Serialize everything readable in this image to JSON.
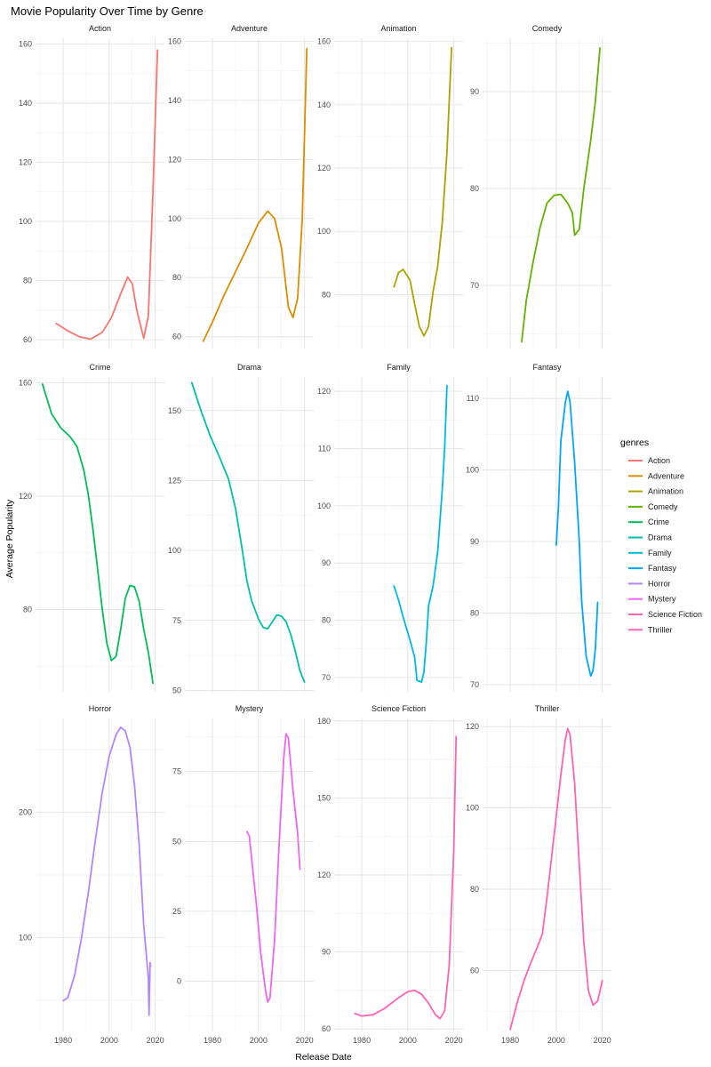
{
  "chart_data": {
    "type": "line",
    "title": "Movie Popularity Over Time by Genre",
    "xlabel": "Release Date",
    "ylabel": "Average Popularity",
    "legend_title": "genres",
    "legend_position": "right",
    "grid": true,
    "x_ticks": [
      1980,
      2000,
      2020
    ],
    "xlim": [
      1968,
      2024
    ],
    "facets": [
      {
        "name": "Action",
        "color": "#F8766D",
        "ylim": [
          57,
          162
        ],
        "y_ticks": [
          60,
          80,
          100,
          120,
          140,
          160
        ],
        "points": [
          [
            1977,
            65.5
          ],
          [
            1982,
            63
          ],
          [
            1987,
            61
          ],
          [
            1992,
            60.2
          ],
          [
            1997,
            62.5
          ],
          [
            2001,
            67.5
          ],
          [
            2005,
            75.5
          ],
          [
            2008,
            81.2
          ],
          [
            2010,
            79
          ],
          [
            2012,
            70
          ],
          [
            2015,
            60.5
          ],
          [
            2017,
            68
          ],
          [
            2019,
            110
          ],
          [
            2021,
            158
          ]
        ]
      },
      {
        "name": "Adventure",
        "color": "#DB8E00",
        "ylim": [
          56,
          161
        ],
        "y_ticks": [
          60,
          80,
          100,
          120,
          140,
          160
        ],
        "points": [
          [
            1976,
            58.5
          ],
          [
            1980,
            65
          ],
          [
            1985,
            74
          ],
          [
            1990,
            82
          ],
          [
            1995,
            90
          ],
          [
            2000,
            98.5
          ],
          [
            2004,
            102.5
          ],
          [
            2007,
            100
          ],
          [
            2010,
            90
          ],
          [
            2013,
            70
          ],
          [
            2015,
            66.5
          ],
          [
            2017,
            73
          ],
          [
            2019,
            100
          ],
          [
            2021,
            157.5
          ]
        ]
      },
      {
        "name": "Animation",
        "color": "#AEA200",
        "ylim": [
          63,
          161
        ],
        "y_ticks": [
          80,
          100,
          120,
          140,
          160
        ],
        "points": [
          [
            1994,
            82.5
          ],
          [
            1996,
            87
          ],
          [
            1998,
            88
          ],
          [
            2001,
            84.5
          ],
          [
            2003,
            77
          ],
          [
            2005,
            70
          ],
          [
            2007,
            67
          ],
          [
            2009,
            70
          ],
          [
            2011,
            81
          ],
          [
            2013,
            89
          ],
          [
            2015,
            103
          ],
          [
            2017,
            125
          ],
          [
            2019,
            158
          ]
        ]
      },
      {
        "name": "Comedy",
        "color": "#64B200",
        "ylim": [
          63.5,
          95.5
        ],
        "y_ticks": [
          70,
          80,
          90
        ],
        "points": [
          [
            1985,
            64.2
          ],
          [
            1987,
            68.5
          ],
          [
            1990,
            72.5
          ],
          [
            1993,
            76
          ],
          [
            1996,
            78.5
          ],
          [
            1999,
            79.3
          ],
          [
            2002,
            79.4
          ],
          [
            2005,
            78.5
          ],
          [
            2007,
            77.5
          ],
          [
            2008,
            75.2
          ],
          [
            2010,
            75.8
          ],
          [
            2012,
            80
          ],
          [
            2015,
            85
          ],
          [
            2017,
            89
          ],
          [
            2019,
            94.5
          ]
        ]
      },
      {
        "name": "Crime",
        "color": "#00BD5C",
        "ylim": [
          51,
          162
        ],
        "y_ticks": [
          80,
          120,
          160
        ],
        "points": [
          [
            1971,
            159.5
          ],
          [
            1975,
            149
          ],
          [
            1979,
            144
          ],
          [
            1983,
            141
          ],
          [
            1986,
            137.5
          ],
          [
            1989,
            129
          ],
          [
            1991,
            120
          ],
          [
            1993,
            108
          ],
          [
            1995,
            94
          ],
          [
            1997,
            80
          ],
          [
            1999,
            68
          ],
          [
            2001,
            62
          ],
          [
            2003,
            63.5
          ],
          [
            2005,
            73
          ],
          [
            2007,
            84
          ],
          [
            2009,
            88.5
          ],
          [
            2011,
            88
          ],
          [
            2013,
            83
          ],
          [
            2015,
            73
          ],
          [
            2017,
            65
          ],
          [
            2019,
            54
          ]
        ]
      },
      {
        "name": "Drama",
        "color": "#00C1A7",
        "ylim": [
          49.5,
          162
        ],
        "y_ticks": [
          50,
          75,
          100,
          125,
          150
        ],
        "points": [
          [
            1971,
            160
          ],
          [
            1975,
            150
          ],
          [
            1979,
            141
          ],
          [
            1983,
            133.5
          ],
          [
            1987,
            125.5
          ],
          [
            1990,
            115
          ],
          [
            1993,
            100
          ],
          [
            1995,
            89
          ],
          [
            1997,
            82
          ],
          [
            2000,
            75.5
          ],
          [
            2002,
            72.5
          ],
          [
            2004,
            72
          ],
          [
            2006,
            74.5
          ],
          [
            2008,
            77
          ],
          [
            2010,
            76.5
          ],
          [
            2012,
            74.5
          ],
          [
            2014,
            70
          ],
          [
            2016,
            64
          ],
          [
            2018,
            57
          ],
          [
            2020,
            53
          ]
        ]
      },
      {
        "name": "Family",
        "color": "#00BADE",
        "ylim": [
          67.5,
          122.5
        ],
        "y_ticks": [
          70,
          80,
          90,
          100,
          110,
          120
        ],
        "points": [
          [
            1994,
            86
          ],
          [
            1996,
            83.5
          ],
          [
            1998,
            80.5
          ],
          [
            2001,
            76.5
          ],
          [
            2003,
            73.5
          ],
          [
            2004,
            69.5
          ],
          [
            2006,
            69.2
          ],
          [
            2007,
            71
          ],
          [
            2008,
            76
          ],
          [
            2009,
            82.5
          ],
          [
            2011,
            86
          ],
          [
            2013,
            92
          ],
          [
            2015,
            103
          ],
          [
            2016,
            110
          ],
          [
            2017,
            121
          ]
        ]
      },
      {
        "name": "Fantasy",
        "color": "#00A6FF",
        "ylim": [
          69,
          113
        ],
        "y_ticks": [
          70,
          80,
          90,
          100,
          110
        ],
        "points": [
          [
            2000,
            89.5
          ],
          [
            2001,
            95
          ],
          [
            2002,
            104
          ],
          [
            2004,
            109.5
          ],
          [
            2005,
            111
          ],
          [
            2006,
            109.5
          ],
          [
            2008,
            101
          ],
          [
            2010,
            90
          ],
          [
            2011,
            82
          ],
          [
            2013,
            74
          ],
          [
            2015,
            71.2
          ],
          [
            2016,
            72
          ],
          [
            2017,
            75
          ],
          [
            2018,
            81.5
          ]
        ]
      },
      {
        "name": "Horror",
        "color": "#B385FF",
        "ylim": [
          25,
          275
        ],
        "y_ticks": [
          100,
          200
        ],
        "points": [
          [
            1980,
            49.5
          ],
          [
            1982,
            52
          ],
          [
            1985,
            70
          ],
          [
            1988,
            100
          ],
          [
            1991,
            137
          ],
          [
            1994,
            178
          ],
          [
            1997,
            216
          ],
          [
            2000,
            245
          ],
          [
            2003,
            262
          ],
          [
            2005,
            268
          ],
          [
            2007,
            265
          ],
          [
            2009,
            252
          ],
          [
            2011,
            222
          ],
          [
            2013,
            175
          ],
          [
            2015,
            110
          ],
          [
            2017,
            68
          ],
          [
            2017.3,
            38
          ],
          [
            2017.6,
            65
          ],
          [
            2017.8,
            80
          ],
          [
            2018,
            77
          ]
        ]
      },
      {
        "name": "Mystery",
        "color": "#EF67EB",
        "ylim": [
          -18,
          94
        ],
        "y_ticks": [
          0,
          25,
          50,
          75
        ],
        "points": [
          [
            1995,
            53.5
          ],
          [
            1996,
            52
          ],
          [
            1997,
            44
          ],
          [
            1999,
            28
          ],
          [
            2001,
            10
          ],
          [
            2003,
            -3
          ],
          [
            2004,
            -7.5
          ],
          [
            2005,
            -6
          ],
          [
            2007,
            15
          ],
          [
            2009,
            50
          ],
          [
            2011,
            80
          ],
          [
            2012,
            88.5
          ],
          [
            2013,
            87
          ],
          [
            2015,
            68
          ],
          [
            2017,
            53
          ],
          [
            2018,
            40
          ]
        ]
      },
      {
        "name": "Science Fiction",
        "color": "#FF63B6",
        "ylim": [
          59,
          181
        ],
        "y_ticks": [
          60,
          90,
          120,
          150,
          180
        ],
        "points": [
          [
            1977,
            66
          ],
          [
            1980,
            65
          ],
          [
            1985,
            65.5
          ],
          [
            1990,
            68
          ],
          [
            1995,
            71.5
          ],
          [
            2000,
            74.5
          ],
          [
            2003,
            75
          ],
          [
            2006,
            73.5
          ],
          [
            2009,
            70
          ],
          [
            2012,
            65.5
          ],
          [
            2014,
            64
          ],
          [
            2016,
            67
          ],
          [
            2018,
            85
          ],
          [
            2020,
            130
          ],
          [
            2021,
            174
          ]
        ]
      },
      {
        "name": "Thriller",
        "color": "#FF63B6",
        "ylim": [
          45,
          122
        ],
        "y_ticks": [
          60,
          80,
          100,
          120
        ],
        "points": [
          [
            1980,
            45.5
          ],
          [
            1983,
            52
          ],
          [
            1986,
            57.5
          ],
          [
            1989,
            62
          ],
          [
            1992,
            66
          ],
          [
            1994,
            69
          ],
          [
            1996,
            78
          ],
          [
            1998,
            88
          ],
          [
            2000,
            98
          ],
          [
            2002,
            108
          ],
          [
            2004,
            117
          ],
          [
            2005,
            119.5
          ],
          [
            2006,
            118
          ],
          [
            2008,
            106
          ],
          [
            2010,
            86
          ],
          [
            2012,
            67
          ],
          [
            2014,
            55
          ],
          [
            2016,
            51.5
          ],
          [
            2018,
            52.5
          ],
          [
            2020,
            57.5
          ]
        ]
      }
    ],
    "legend": [
      {
        "label": "Action",
        "color": "#F8766D"
      },
      {
        "label": "Adventure",
        "color": "#DB8E00"
      },
      {
        "label": "Animation",
        "color": "#AEA200"
      },
      {
        "label": "Comedy",
        "color": "#64B200"
      },
      {
        "label": "Crime",
        "color": "#00BD5C"
      },
      {
        "label": "Drama",
        "color": "#00C1A7"
      },
      {
        "label": "Family",
        "color": "#00BADE"
      },
      {
        "label": "Fantasy",
        "color": "#00A6FF"
      },
      {
        "label": "Horror",
        "color": "#B385FF"
      },
      {
        "label": "Mystery",
        "color": "#EF67EB"
      },
      {
        "label": "Science Fiction",
        "color": "#FF63B6"
      },
      {
        "label": "Thriller",
        "color": "#FF63B6"
      }
    ]
  }
}
